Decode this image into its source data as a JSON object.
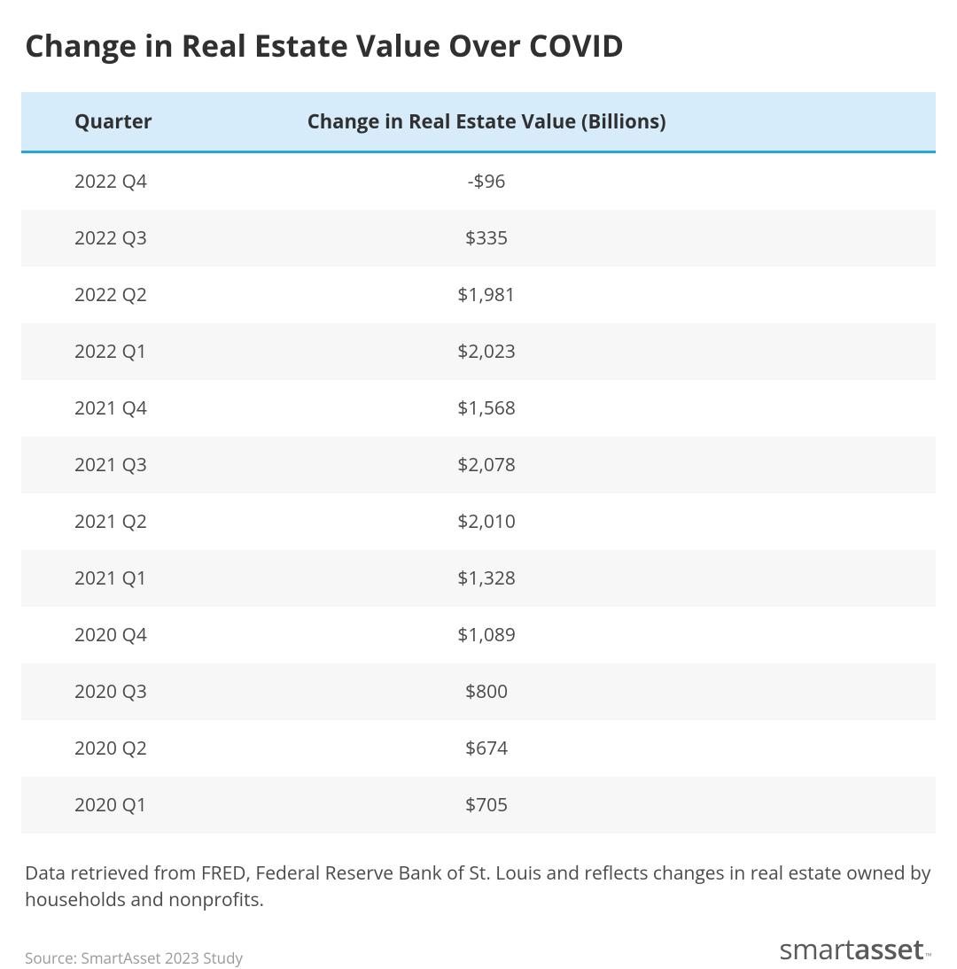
{
  "title": "Change in Real Estate Value Over COVID",
  "table": {
    "type": "table",
    "header_bg_color": "#d6ecfa",
    "header_border_color": "#2aa7d8",
    "row_even_bg": "#ffffff",
    "row_odd_bg": "#f7f7f7",
    "text_color": "#4a4a4a",
    "header_text_color": "#303030",
    "font_size_header": 22,
    "font_size_body": 21,
    "columns": [
      {
        "key": "quarter",
        "label": "Quarter",
        "align": "left",
        "width_pct": 26
      },
      {
        "key": "value",
        "label": "Change in Real Estate Value (Billions)",
        "align": "center",
        "width_pct": 74
      }
    ],
    "rows": [
      {
        "quarter": "2022 Q4",
        "value": "-$96"
      },
      {
        "quarter": "2022 Q3",
        "value": "$335"
      },
      {
        "quarter": "2022 Q2",
        "value": "$1,981"
      },
      {
        "quarter": "2022 Q1",
        "value": "$2,023"
      },
      {
        "quarter": "2021 Q4",
        "value": "$1,568"
      },
      {
        "quarter": "2021 Q3",
        "value": "$2,078"
      },
      {
        "quarter": "2021 Q2",
        "value": "$2,010"
      },
      {
        "quarter": "2021 Q1",
        "value": "$1,328"
      },
      {
        "quarter": "2020 Q4",
        "value": "$1,089"
      },
      {
        "quarter": "2020 Q3",
        "value": "$800"
      },
      {
        "quarter": "2020 Q2",
        "value": "$674"
      },
      {
        "quarter": "2020 Q1",
        "value": "$705"
      }
    ]
  },
  "caption": "Data retrieved from FRED, Federal Reserve Bank of St. Louis and reflects changes in real estate owned by households and nonprofits.",
  "source": "Source: SmartAsset 2023 Study",
  "logo": {
    "part1": "smart",
    "part2": "asset",
    "tm": "™"
  },
  "colors": {
    "background": "#ffffff",
    "title_color": "#303030",
    "source_color": "#9a9a9a",
    "logo_color": "#5a5a5a"
  }
}
